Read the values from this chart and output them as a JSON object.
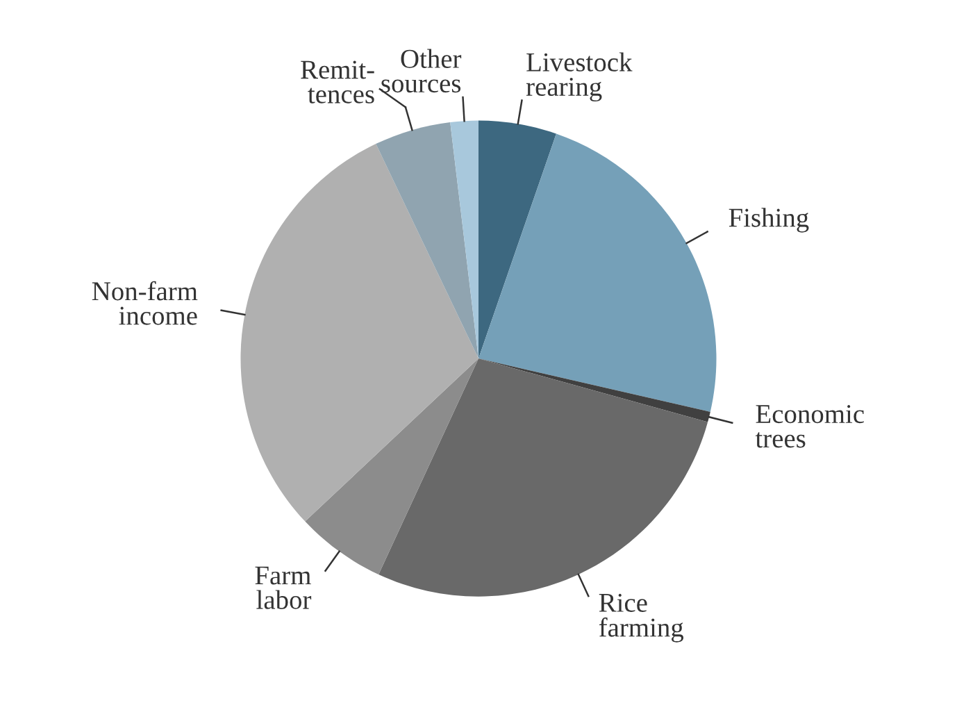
{
  "chart_data": {
    "type": "pie",
    "categories": [
      "Livestock\nrearing",
      "Fishing",
      "Economic\ntrees",
      "Rice\nfarming",
      "Farm\nlabor",
      "Non-farm\nincome",
      "Remit-\ntences",
      "Other\nsources"
    ],
    "values": [
      5.3,
      23.3,
      0.7,
      27.6,
      6.1,
      29.9,
      5.2,
      1.9
    ],
    "colors": [
      "#3d6880",
      "#75a0b8",
      "#404040",
      "#696969",
      "#8c8c8c",
      "#b0b0b0",
      "#90a4b0",
      "#a8c8dc"
    ]
  }
}
